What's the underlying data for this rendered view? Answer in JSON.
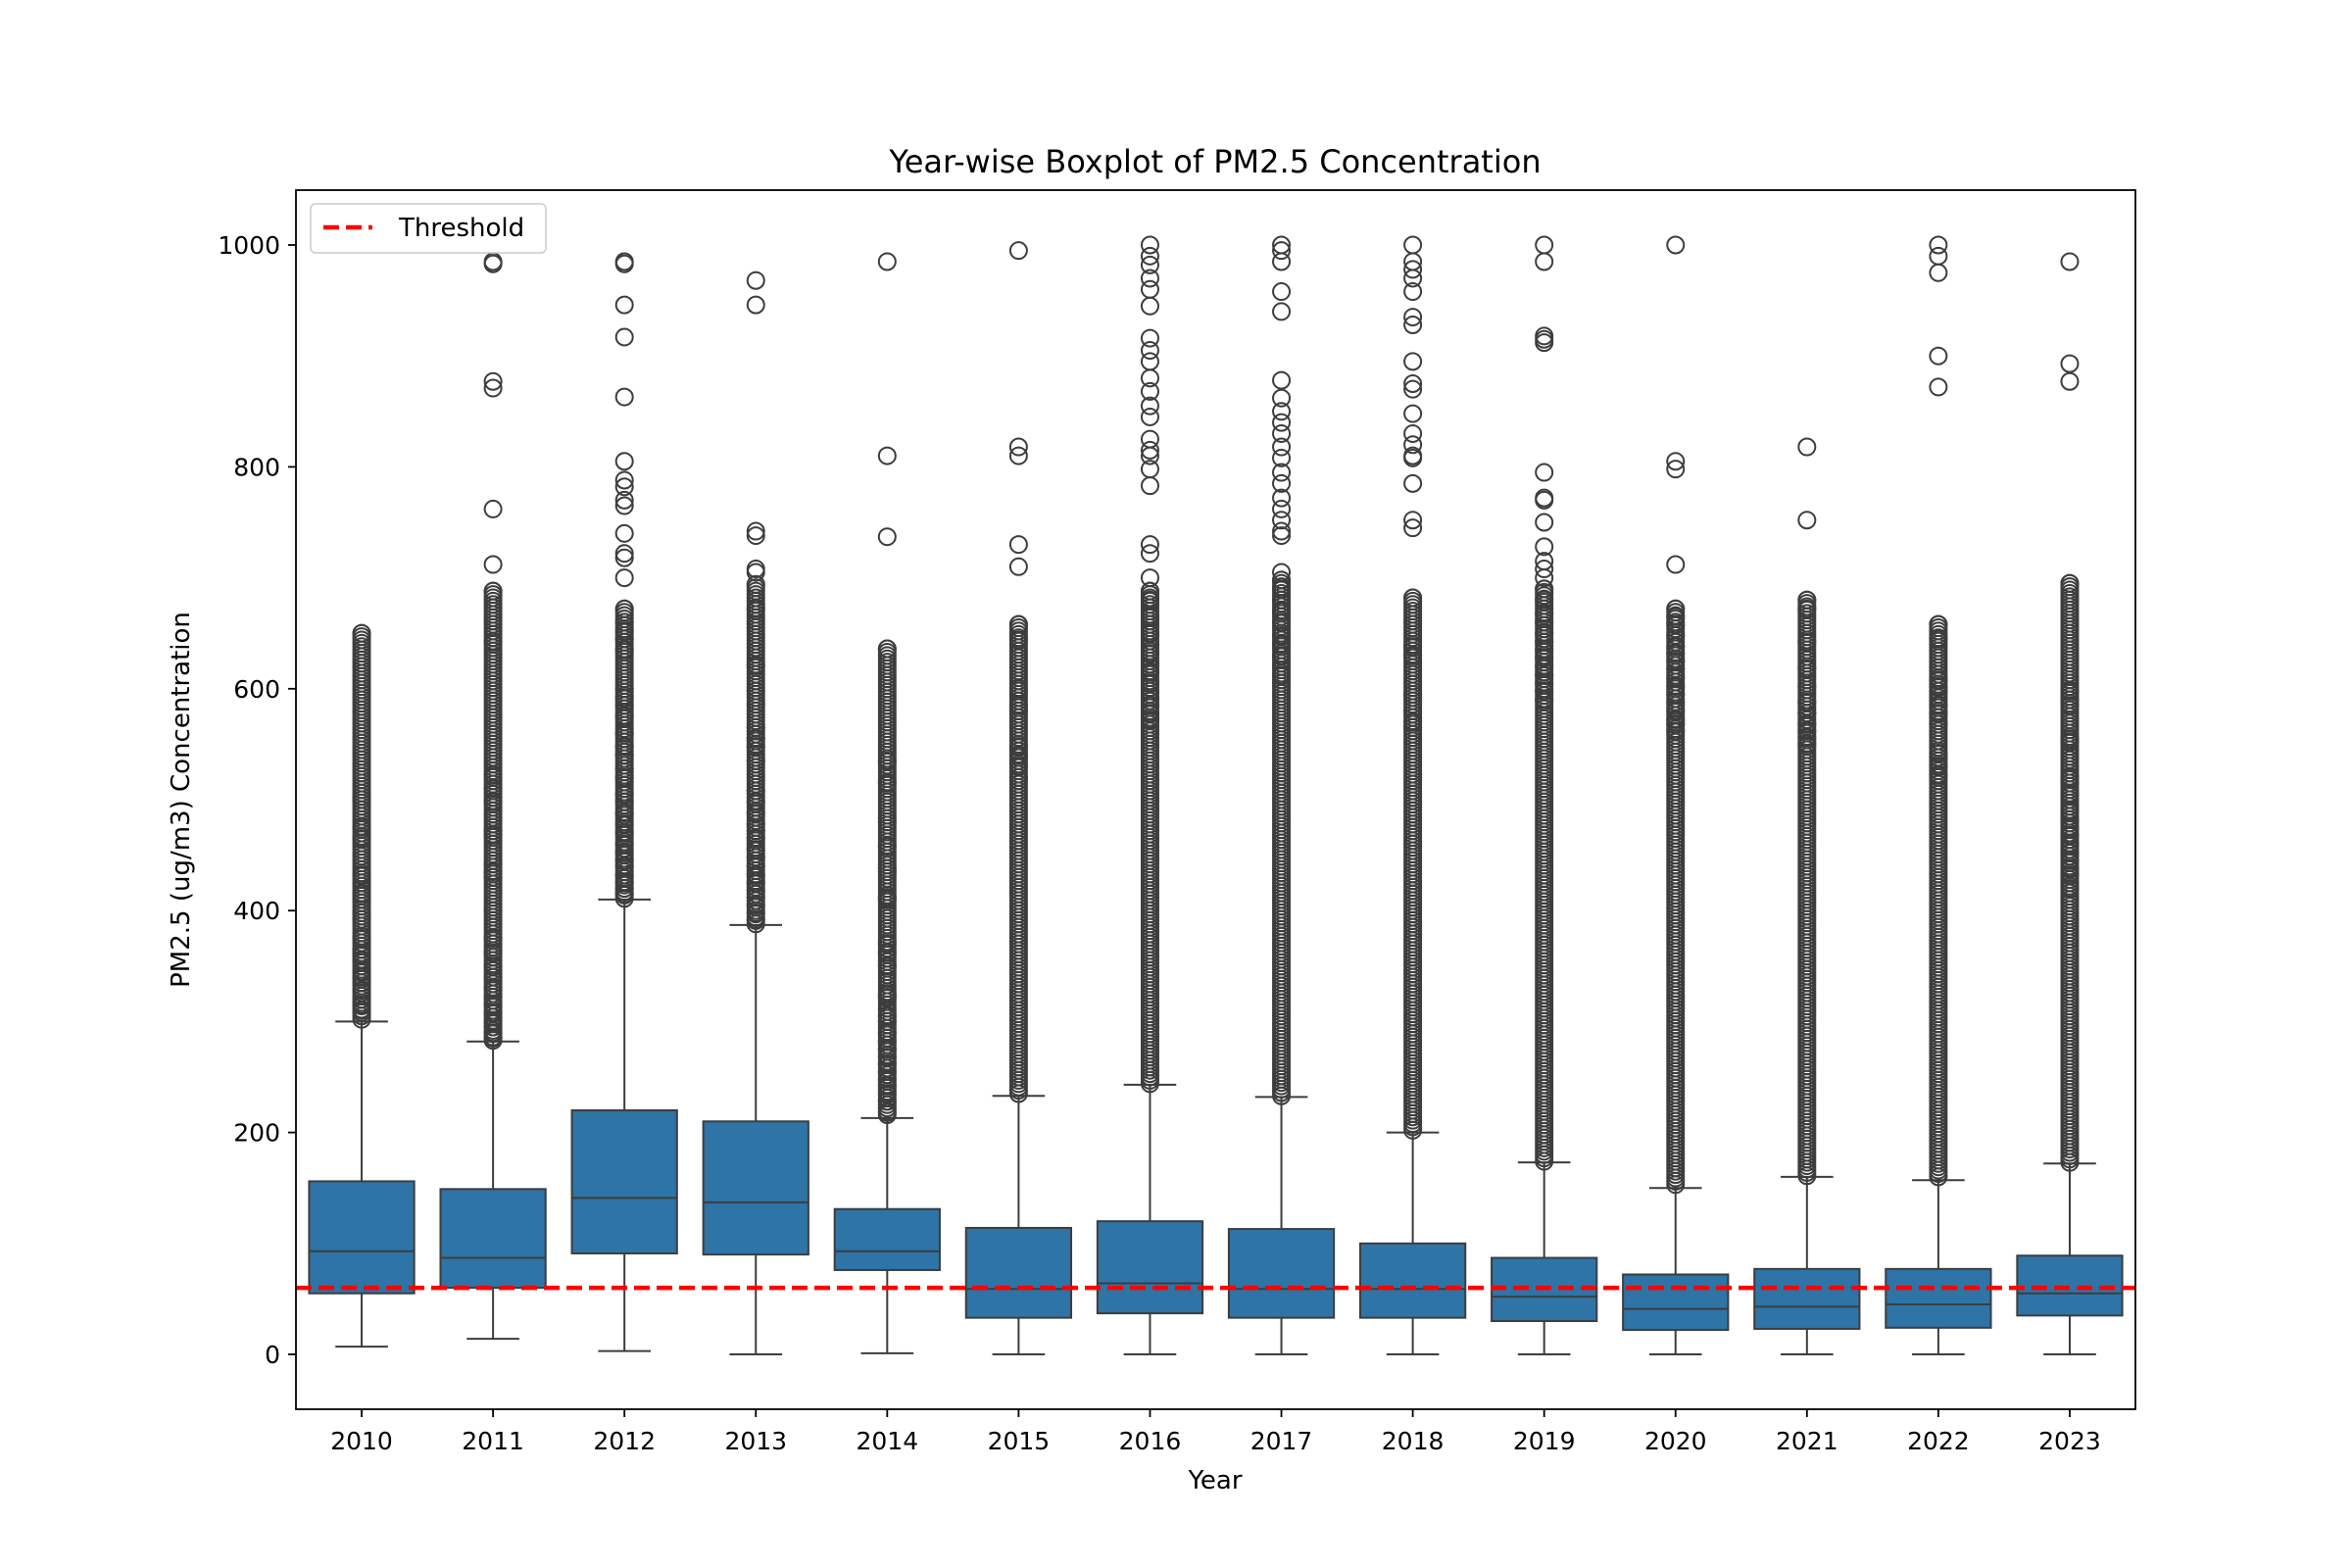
{
  "chart_data": {
    "type": "box",
    "title": "Year-wise Boxplot of PM2.5 Concentration",
    "xlabel": "Year",
    "ylabel": "PM2.5 (ug/m3) Concentration",
    "ylim": [
      -50,
      1050
    ],
    "yticks": [
      0,
      200,
      400,
      600,
      800,
      1000
    ],
    "grid": false,
    "legend": {
      "position": "top-left",
      "entries": [
        "Threshold"
      ]
    },
    "threshold": {
      "name": "Threshold",
      "value": 60,
      "color": "#ff0000",
      "style": "dashed"
    },
    "box_color": "#2e74a6",
    "edge_color": "#3d3d3d",
    "categories": [
      "2010",
      "2011",
      "2012",
      "2013",
      "2014",
      "2015",
      "2016",
      "2017",
      "2018",
      "2019",
      "2020",
      "2021",
      "2022",
      "2023"
    ],
    "boxes": [
      {
        "whisker_low": 7,
        "q1": 55,
        "median": 93,
        "q3": 156,
        "whisker_high": 300,
        "outlier_max": 650,
        "outliers": [
          650,
          503,
          500,
          475,
          465,
          432,
          425,
          415,
          410,
          398,
          392,
          375,
          365,
          360,
          355,
          345,
          340,
          335,
          328,
          320,
          315,
          310
        ]
      },
      {
        "whisker_low": 14,
        "q1": 60,
        "median": 87,
        "q3": 149,
        "whisker_high": 282,
        "outlier_max": 985,
        "outliers": [
          985,
          983,
          877,
          871,
          762,
          712,
          688,
          642,
          522,
          510,
          498,
          472,
          468,
          442,
          435,
          430,
          400,
          375,
          362,
          350,
          340,
          330,
          322,
          315,
          308,
          300,
          295,
          290,
          285
        ]
      },
      {
        "whisker_low": 3,
        "q1": 91,
        "median": 141,
        "q3": 220,
        "whisker_high": 410,
        "outlier_max": 985,
        "outliers": [
          985,
          983,
          946,
          917,
          863,
          805,
          788,
          782,
          770,
          765,
          740,
          722,
          718,
          700,
          672,
          660,
          652,
          645,
          635,
          600,
          592,
          585,
          575,
          560,
          548,
          540,
          528,
          520,
          505,
          498,
          488,
          478,
          470,
          460,
          452,
          445,
          440,
          432,
          425,
          420,
          415
        ]
      },
      {
        "whisker_low": 0,
        "q1": 90,
        "median": 137,
        "q3": 210,
        "whisker_high": 387,
        "outlier_max": 968,
        "outliers": [
          968,
          946,
          742,
          738,
          708,
          705,
          694,
          672,
          621,
          598,
          586,
          565,
          555,
          548,
          535,
          508,
          498,
          488,
          478,
          472,
          465,
          455,
          448,
          440,
          432,
          425,
          418,
          412,
          405,
          398,
          392
        ]
      },
      {
        "whisker_low": 1,
        "q1": 76,
        "median": 93,
        "q3": 131,
        "whisker_high": 213,
        "outlier_max": 985,
        "outliers": [
          985,
          810,
          737,
          636,
          535,
          515,
          480,
          458,
          438,
          435,
          412,
          410,
          370,
          362,
          350,
          325,
          322,
          305,
          300,
          290,
          282,
          275,
          268,
          262,
          255,
          248,
          242,
          235,
          228,
          222,
          218
        ]
      },
      {
        "whisker_low": 0,
        "q1": 33,
        "median": 59,
        "q3": 114,
        "whisker_high": 233,
        "outlier_max": 995,
        "outliers": [
          995,
          818,
          810,
          730,
          710,
          658,
          644,
          600,
          585,
          580,
          548,
          540,
          530,
          520
        ]
      },
      {
        "whisker_low": 0,
        "q1": 37,
        "median": 64,
        "q3": 120,
        "whisker_high": 243,
        "outlier_max": 1000,
        "outliers": [
          1000,
          990,
          982,
          970,
          960,
          945,
          916,
          905,
          895,
          880,
          868,
          855,
          845,
          825,
          815,
          810,
          798,
          783,
          730,
          722,
          700,
          688,
          680,
          665,
          658,
          650,
          640,
          632,
          622,
          615,
          605,
          598,
          592,
          585,
          578,
          572
        ]
      },
      {
        "whisker_low": 0,
        "q1": 33,
        "median": 59,
        "q3": 113,
        "whisker_high": 232,
        "outlier_max": 1000,
        "outliers": [
          1000,
          995,
          985,
          958,
          940,
          878,
          862,
          850,
          840,
          830,
          818,
          808,
          795,
          785,
          772,
          762,
          752,
          742,
          738,
          705,
          698,
          690,
          680,
          670,
          660,
          648,
          640,
          630,
          620,
          612,
          605
        ]
      },
      {
        "whisker_low": 0,
        "q1": 33,
        "median": 59,
        "q3": 100,
        "whisker_high": 200,
        "outlier_max": 1000,
        "outliers": [
          1000,
          985,
          978,
          970,
          958,
          935,
          928,
          895,
          875,
          870,
          848,
          830,
          820,
          810,
          808,
          785,
          752,
          745,
          682,
          638,
          630,
          595,
          580,
          570,
          565
        ]
      },
      {
        "whisker_low": 0,
        "q1": 30,
        "median": 52,
        "q3": 87,
        "whisker_high": 173,
        "outlier_max": 1000,
        "outliers": [
          1000,
          985,
          918,
          915,
          912,
          795,
          772,
          770,
          750,
          728,
          715,
          708,
          700,
          690,
          680,
          668,
          660,
          650,
          642,
          635,
          628,
          620,
          612,
          605,
          598,
          590
        ]
      },
      {
        "whisker_low": 0,
        "q1": 22,
        "median": 41,
        "q3": 72,
        "whisker_high": 150,
        "outlier_max": 1000,
        "outliers": [
          1000,
          805,
          798,
          712,
          672,
          665,
          658,
          648,
          638,
          632,
          625,
          618,
          610,
          602,
          595,
          588,
          580,
          572,
          568,
          562
        ]
      },
      {
        "whisker_low": 0,
        "q1": 23,
        "median": 43,
        "q3": 77,
        "whisker_high": 160,
        "outlier_max": 818,
        "outliers": [
          818,
          752,
          680,
          672,
          642,
          618,
          602,
          588,
          578,
          568,
          562,
          556,
          550
        ]
      },
      {
        "whisker_low": 0,
        "q1": 24,
        "median": 45,
        "q3": 77,
        "whisker_high": 157,
        "outlier_max": 1000,
        "outliers": [
          1000,
          990,
          975,
          900,
          872,
          658,
          645,
          608,
          602,
          598,
          585,
          578,
          568,
          542,
          538,
          530,
          522
        ]
      },
      {
        "whisker_low": 0,
        "q1": 35,
        "median": 55,
        "q3": 89,
        "whisker_high": 172,
        "outlier_max": 985,
        "outliers": [
          985,
          893,
          877,
          695,
          598,
          590,
          585,
          555,
          552,
          520,
          515,
          505,
          490,
          482,
          475,
          468,
          460,
          452,
          445,
          438,
          432,
          425,
          420
        ]
      }
    ]
  }
}
